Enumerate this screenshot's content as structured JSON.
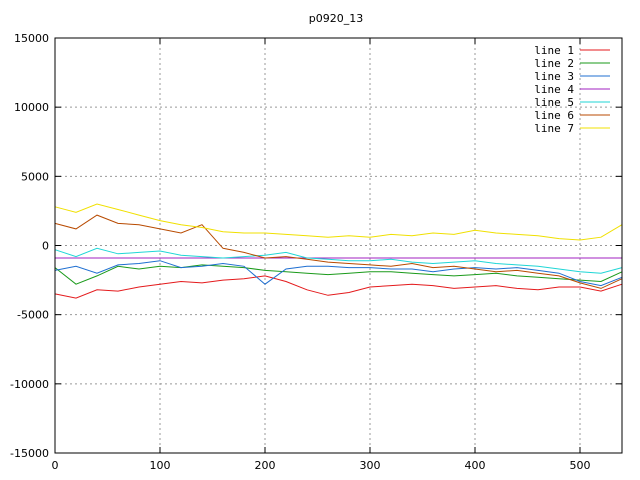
{
  "chart_data": {
    "type": "line",
    "title": "p0920_13",
    "xlabel": "",
    "ylabel": "",
    "xlim": [
      0,
      540
    ],
    "ylim": [
      -15000,
      15000
    ],
    "x_ticks": [
      0,
      100,
      200,
      300,
      400,
      500
    ],
    "y_ticks": [
      -15000,
      -10000,
      -5000,
      0,
      5000,
      10000,
      15000
    ],
    "grid": true,
    "legend_position": "top-right",
    "series": [
      {
        "name": "line 1",
        "color": "#e41a1c",
        "x": [
          0,
          20,
          40,
          60,
          80,
          100,
          120,
          140,
          160,
          180,
          200,
          220,
          240,
          260,
          280,
          300,
          320,
          340,
          360,
          380,
          400,
          420,
          440,
          460,
          480,
          500,
          520,
          540
        ],
        "y": [
          -3500,
          -3800,
          -3200,
          -3300,
          -3000,
          -2800,
          -2600,
          -2700,
          -2500,
          -2400,
          -2200,
          -2600,
          -3200,
          -3600,
          -3400,
          -3000,
          -2900,
          -2800,
          -2900,
          -3100,
          -3000,
          -2900,
          -3100,
          -3200,
          -3000,
          -3000,
          -3300,
          -2800
        ]
      },
      {
        "name": "line 2",
        "color": "#1a9a1a",
        "x": [
          0,
          20,
          40,
          60,
          80,
          100,
          120,
          140,
          160,
          180,
          200,
          220,
          240,
          260,
          280,
          300,
          320,
          340,
          360,
          380,
          400,
          420,
          440,
          460,
          480,
          500,
          520,
          540
        ],
        "y": [
          -1600,
          -2800,
          -2200,
          -1500,
          -1700,
          -1500,
          -1600,
          -1400,
          -1500,
          -1600,
          -1800,
          -1900,
          -2000,
          -2100,
          -2000,
          -1900,
          -1900,
          -2000,
          -2100,
          -2200,
          -2100,
          -2000,
          -2200,
          -2300,
          -2400,
          -2500,
          -2600,
          -1900
        ]
      },
      {
        "name": "line 3",
        "color": "#1f6fd1",
        "x": [
          0,
          20,
          40,
          60,
          80,
          100,
          120,
          140,
          160,
          180,
          200,
          220,
          240,
          260,
          280,
          300,
          320,
          340,
          360,
          380,
          400,
          420,
          440,
          460,
          480,
          500,
          520,
          540
        ],
        "y": [
          -1800,
          -1500,
          -2000,
          -1400,
          -1300,
          -1100,
          -1600,
          -1500,
          -1300,
          -1500,
          -2800,
          -1700,
          -1500,
          -1500,
          -1600,
          -1600,
          -1700,
          -1700,
          -1900,
          -1700,
          -1600,
          -1700,
          -1600,
          -1800,
          -2000,
          -2600,
          -2900,
          -2300
        ]
      },
      {
        "name": "line 4",
        "color": "#a020c0",
        "x": [
          0,
          540
        ],
        "y": [
          -900,
          -900
        ]
      },
      {
        "name": "line 5",
        "color": "#1fd6d6",
        "x": [
          0,
          20,
          40,
          60,
          80,
          100,
          120,
          140,
          160,
          180,
          200,
          220,
          240,
          260,
          280,
          300,
          320,
          340,
          360,
          380,
          400,
          420,
          440,
          460,
          480,
          500,
          520,
          540
        ],
        "y": [
          -300,
          -800,
          -200,
          -600,
          -500,
          -400,
          -700,
          -800,
          -900,
          -800,
          -700,
          -500,
          -900,
          -1000,
          -1100,
          -1100,
          -1000,
          -1200,
          -1300,
          -1200,
          -1100,
          -1300,
          -1400,
          -1500,
          -1700,
          -1900,
          -2000,
          -1600
        ]
      },
      {
        "name": "line 6",
        "color": "#b84a00",
        "x": [
          0,
          20,
          40,
          60,
          80,
          100,
          120,
          140,
          160,
          180,
          200,
          220,
          240,
          260,
          280,
          300,
          320,
          340,
          360,
          380,
          400,
          420,
          440,
          460,
          480,
          500,
          520,
          540
        ],
        "y": [
          1600,
          1200,
          2200,
          1600,
          1500,
          1200,
          900,
          1500,
          -200,
          -500,
          -900,
          -800,
          -1000,
          -1200,
          -1300,
          -1400,
          -1500,
          -1300,
          -1600,
          -1500,
          -1700,
          -1900,
          -1800,
          -2000,
          -2200,
          -2700,
          -3100,
          -2400
        ]
      },
      {
        "name": "line 7",
        "color": "#f0e000",
        "x": [
          0,
          20,
          40,
          60,
          80,
          100,
          120,
          140,
          160,
          180,
          200,
          220,
          240,
          260,
          280,
          300,
          320,
          340,
          360,
          380,
          400,
          420,
          440,
          460,
          480,
          500,
          520,
          540
        ],
        "y": [
          2800,
          2400,
          3000,
          2600,
          2200,
          1800,
          1500,
          1300,
          1000,
          900,
          900,
          800,
          700,
          600,
          700,
          600,
          800,
          700,
          900,
          800,
          1100,
          900,
          800,
          700,
          500,
          400,
          600,
          1500
        ]
      }
    ]
  }
}
